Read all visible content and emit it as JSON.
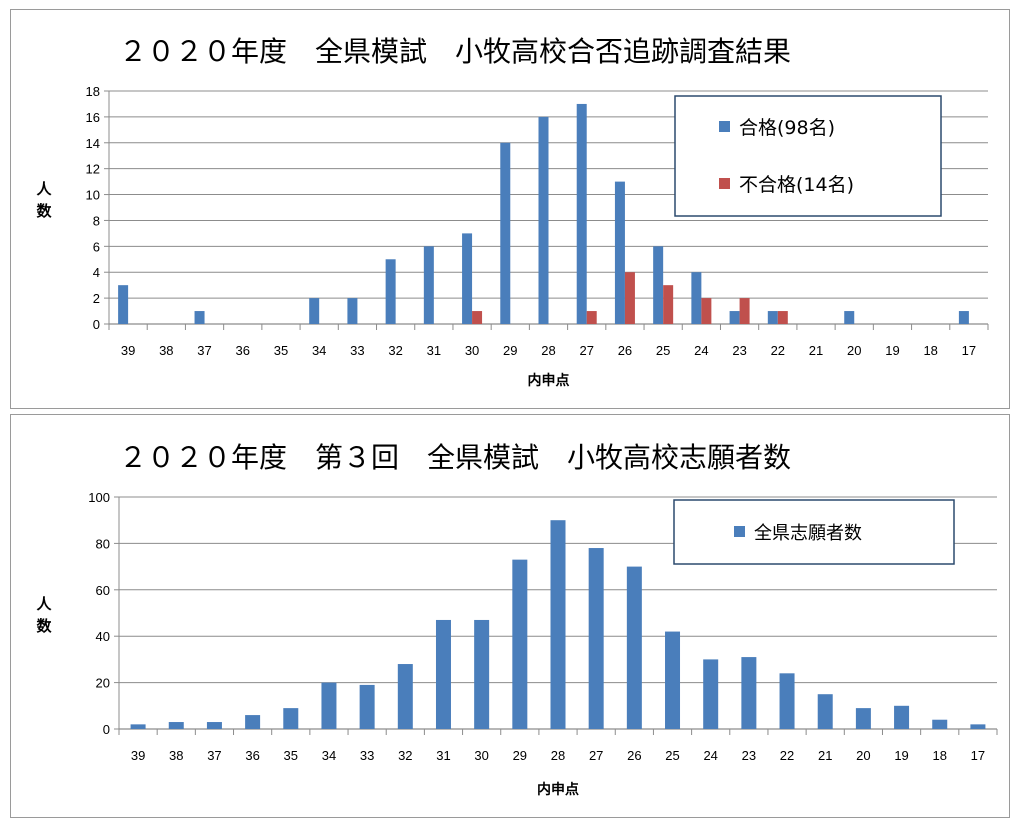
{
  "chart_data": [
    {
      "type": "bar",
      "title": "２０２０年度　全県模試　小牧高校合否追跡調査結果",
      "ylabel": "人数",
      "xlabel": "内申点",
      "ylim": [
        0,
        18
      ],
      "yticks": [
        0,
        2,
        4,
        6,
        8,
        10,
        12,
        14,
        16,
        18
      ],
      "grid": true,
      "legend": "top-right",
      "categories": [
        "39",
        "38",
        "37",
        "36",
        "35",
        "34",
        "33",
        "32",
        "31",
        "30",
        "29",
        "28",
        "27",
        "26",
        "25",
        "24",
        "23",
        "22",
        "21",
        "20",
        "19",
        "18",
        "17"
      ],
      "series": [
        {
          "name": "合格(98名)",
          "color": "#4a7ebb",
          "values": [
            3,
            0,
            1,
            0,
            0,
            2,
            2,
            5,
            6,
            7,
            14,
            16,
            17,
            11,
            6,
            4,
            1,
            1,
            0,
            1,
            0,
            0,
            1
          ]
        },
        {
          "name": "不合格(14名)",
          "color": "#c0504d",
          "values": [
            0,
            0,
            0,
            0,
            0,
            0,
            0,
            0,
            0,
            1,
            0,
            0,
            1,
            4,
            3,
            2,
            2,
            1,
            0,
            0,
            0,
            0,
            0
          ]
        }
      ]
    },
    {
      "type": "bar",
      "title": "２０２０年度　第３回　全県模試　小牧高校志願者数",
      "ylabel": "人数",
      "xlabel": "内申点",
      "ylim": [
        0,
        100
      ],
      "yticks": [
        0,
        20,
        40,
        60,
        80,
        100
      ],
      "grid": true,
      "legend": "top-right",
      "categories": [
        "39",
        "38",
        "37",
        "36",
        "35",
        "34",
        "33",
        "32",
        "31",
        "30",
        "29",
        "28",
        "27",
        "26",
        "25",
        "24",
        "23",
        "22",
        "21",
        "20",
        "19",
        "18",
        "17"
      ],
      "series": [
        {
          "name": "全県志願者数",
          "color": "#4a7ebb",
          "values": [
            2,
            3,
            3,
            6,
            9,
            20,
            19,
            28,
            47,
            47,
            73,
            90,
            78,
            70,
            42,
            30,
            31,
            24,
            15,
            9,
            10,
            4,
            2
          ]
        }
      ]
    }
  ]
}
